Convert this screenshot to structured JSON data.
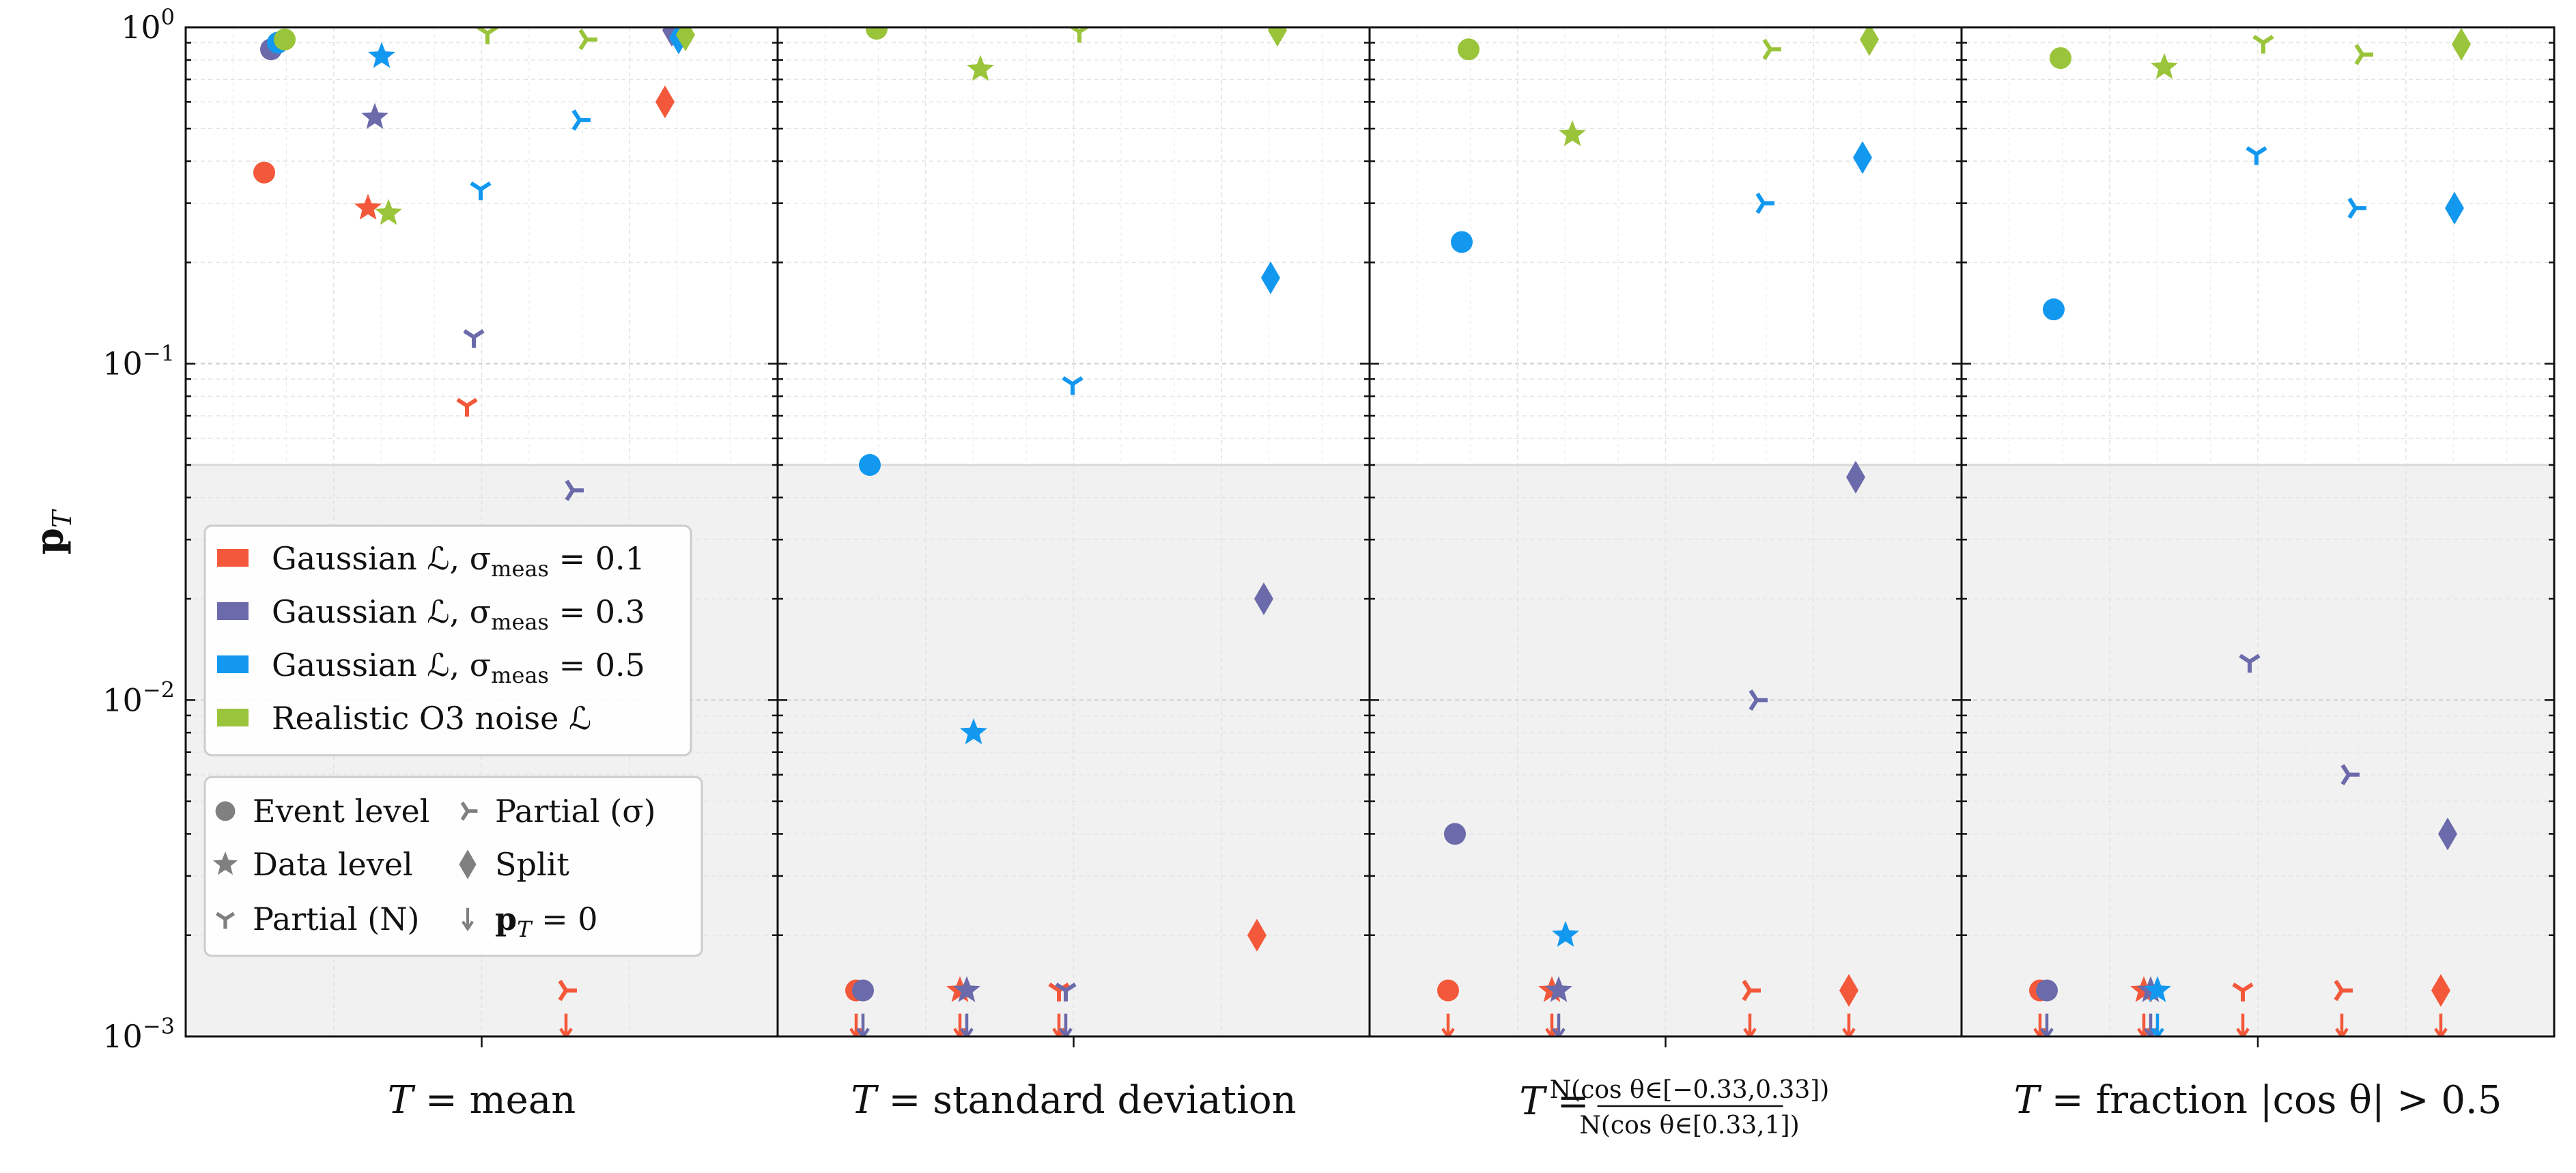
{
  "chart_data": {
    "type": "scatter",
    "y_scale": "log",
    "ylim": [
      0.001,
      1.0
    ],
    "ylabel": "p",
    "ylabel_sub": "T",
    "y_ticks": [
      {
        "value": 1,
        "base": "10",
        "exp": "0"
      },
      {
        "value": 0.1,
        "base": "10",
        "exp": "−1"
      },
      {
        "value": 0.01,
        "base": "10",
        "exp": "−2"
      },
      {
        "value": 0.001,
        "base": "10",
        "exp": "−3"
      }
    ],
    "significance_threshold": 0.05,
    "zero_marker_value": 0.00137,
    "colors": {
      "g01": "#f4583a",
      "g03": "#6b6aaa",
      "g05": "#1398f0",
      "o3": "#9ac43a"
    },
    "series": [
      {
        "key": "g01",
        "label_prefix": "Gaussian ℒ, σ",
        "label_sub": "meas",
        "label_suffix": " = 0.1"
      },
      {
        "key": "g03",
        "label_prefix": "Gaussian ℒ, σ",
        "label_sub": "meas",
        "label_suffix": " = 0.3"
      },
      {
        "key": "g05",
        "label_prefix": "Gaussian ℒ, σ",
        "label_sub": "meas",
        "label_suffix": " = 0.5"
      },
      {
        "key": "o3",
        "label_prefix": "Realistic O3 noise ℒ",
        "label_sub": "",
        "label_suffix": ""
      }
    ],
    "methods": [
      {
        "key": "event",
        "label": "Event level"
      },
      {
        "key": "data",
        "label": "Data level"
      },
      {
        "key": "partialN",
        "label": "Partial (N)"
      },
      {
        "key": "partialSigma",
        "label": "Partial (σ)"
      },
      {
        "key": "split",
        "label": "Split"
      },
      {
        "key": "zero",
        "label": "p = 0",
        "label_sub": "T"
      }
    ],
    "panels": [
      {
        "name": "mean",
        "title_prefix": "T = ",
        "title_text": "mean",
        "points": [
          {
            "series": "g01",
            "method": "event",
            "value": 0.37
          },
          {
            "series": "g03",
            "method": "event",
            "value": 0.86
          },
          {
            "series": "g05",
            "method": "event",
            "value": 0.9
          },
          {
            "series": "o3",
            "method": "event",
            "value": 0.92
          },
          {
            "series": "g01",
            "method": "data",
            "value": 0.29
          },
          {
            "series": "g03",
            "method": "data",
            "value": 0.54
          },
          {
            "series": "g05",
            "method": "data",
            "value": 0.82
          },
          {
            "series": "o3",
            "method": "data",
            "value": 0.28
          },
          {
            "series": "g01",
            "method": "partialN",
            "value": 0.075
          },
          {
            "series": "g03",
            "method": "partialN",
            "value": 0.12
          },
          {
            "series": "g05",
            "method": "partialN",
            "value": 0.33
          },
          {
            "series": "o3",
            "method": "partialN",
            "value": 0.96
          },
          {
            "series": "g01",
            "method": "partialSigma",
            "value": "zero"
          },
          {
            "series": "g03",
            "method": "partialSigma",
            "value": 0.042
          },
          {
            "series": "g05",
            "method": "partialSigma",
            "value": 0.53
          },
          {
            "series": "o3",
            "method": "partialSigma",
            "value": 0.92
          },
          {
            "series": "g01",
            "method": "split",
            "value": 0.6
          },
          {
            "series": "g03",
            "method": "split",
            "value": 0.98
          },
          {
            "series": "g05",
            "method": "split",
            "value": 0.93
          },
          {
            "series": "o3",
            "method": "split",
            "value": 0.95
          }
        ]
      },
      {
        "name": "standard-deviation",
        "title_prefix": "T = ",
        "title_text": "standard deviation",
        "points": [
          {
            "series": "g01",
            "method": "event",
            "value": "zero"
          },
          {
            "series": "g03",
            "method": "event",
            "value": "zero"
          },
          {
            "series": "g05",
            "method": "event",
            "value": 0.05
          },
          {
            "series": "o3",
            "method": "event",
            "value": 0.99
          },
          {
            "series": "g01",
            "method": "data",
            "value": "zero"
          },
          {
            "series": "g03",
            "method": "data",
            "value": "zero"
          },
          {
            "series": "g05",
            "method": "data",
            "value": 0.008
          },
          {
            "series": "o3",
            "method": "data",
            "value": 0.75
          },
          {
            "series": "g01",
            "method": "partialN",
            "value": "zero"
          },
          {
            "series": "g03",
            "method": "partialN",
            "value": "zero"
          },
          {
            "series": "g05",
            "method": "partialN",
            "value": 0.087
          },
          {
            "series": "o3",
            "method": "partialN",
            "value": 0.97
          },
          {
            "series": "g01",
            "method": "split",
            "value": 0.002
          },
          {
            "series": "g03",
            "method": "split",
            "value": 0.02
          },
          {
            "series": "g05",
            "method": "split",
            "value": 0.18
          },
          {
            "series": "o3",
            "method": "split",
            "value": 0.98
          }
        ]
      },
      {
        "name": "cos-ratio",
        "title_prefix": "T = ",
        "title_num": "N(cos θ∈[−0.33,0.33])",
        "title_den": "N(cos θ∈[0.33,1])",
        "points": [
          {
            "series": "g01",
            "method": "event",
            "value": "zero"
          },
          {
            "series": "g03",
            "method": "event",
            "value": 0.004
          },
          {
            "series": "g05",
            "method": "event",
            "value": 0.23
          },
          {
            "series": "o3",
            "method": "event",
            "value": 0.86
          },
          {
            "series": "g01",
            "method": "data",
            "value": "zero"
          },
          {
            "series": "g03",
            "method": "data",
            "value": "zero"
          },
          {
            "series": "g05",
            "method": "data",
            "value": 0.002
          },
          {
            "series": "o3",
            "method": "data",
            "value": 0.48
          },
          {
            "series": "g01",
            "method": "partialSigma",
            "value": "zero"
          },
          {
            "series": "g03",
            "method": "partialSigma",
            "value": 0.01
          },
          {
            "series": "g05",
            "method": "partialSigma",
            "value": 0.3
          },
          {
            "series": "o3",
            "method": "partialSigma",
            "value": 0.86
          },
          {
            "series": "g01",
            "method": "split",
            "value": "zero"
          },
          {
            "series": "g03",
            "method": "split",
            "value": 0.046
          },
          {
            "series": "g05",
            "method": "split",
            "value": 0.41
          },
          {
            "series": "o3",
            "method": "split",
            "value": 0.92
          }
        ]
      },
      {
        "name": "fraction-cos",
        "title_prefix": "T = ",
        "title_text": "fraction |cos θ| > 0.5",
        "points": [
          {
            "series": "g01",
            "method": "event",
            "value": "zero"
          },
          {
            "series": "g03",
            "method": "event",
            "value": "zero"
          },
          {
            "series": "g05",
            "method": "event",
            "value": 0.145
          },
          {
            "series": "o3",
            "method": "event",
            "value": 0.81
          },
          {
            "series": "g01",
            "method": "data",
            "value": "zero"
          },
          {
            "series": "g03",
            "method": "data",
            "value": "zero"
          },
          {
            "series": "g05",
            "method": "data",
            "value": "zero"
          },
          {
            "series": "o3",
            "method": "data",
            "value": 0.76
          },
          {
            "series": "g01",
            "method": "partialN",
            "value": "zero"
          },
          {
            "series": "g03",
            "method": "partialN",
            "value": 0.013
          },
          {
            "series": "g05",
            "method": "partialN",
            "value": 0.42
          },
          {
            "series": "o3",
            "method": "partialN",
            "value": 0.9
          },
          {
            "series": "g01",
            "method": "partialSigma",
            "value": "zero"
          },
          {
            "series": "g03",
            "method": "partialSigma",
            "value": 0.006
          },
          {
            "series": "g05",
            "method": "partialSigma",
            "value": 0.29
          },
          {
            "series": "o3",
            "method": "partialSigma",
            "value": 0.83
          },
          {
            "series": "g01",
            "method": "split",
            "value": "zero"
          },
          {
            "series": "g03",
            "method": "split",
            "value": 0.004
          },
          {
            "series": "g05",
            "method": "split",
            "value": 0.29
          },
          {
            "series": "o3",
            "method": "split",
            "value": 0.89
          }
        ]
      }
    ]
  }
}
